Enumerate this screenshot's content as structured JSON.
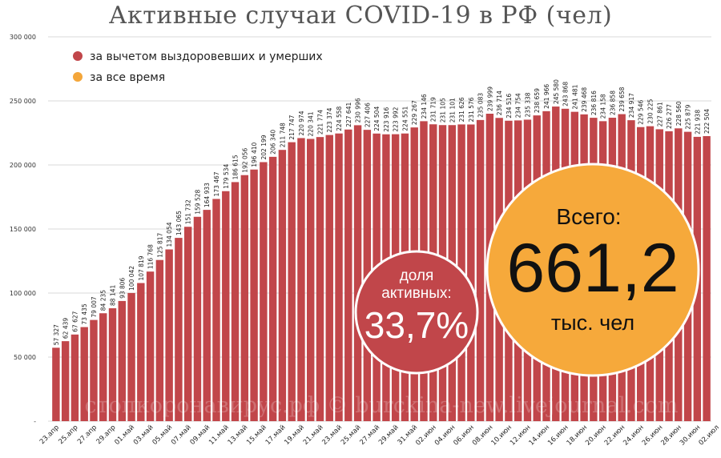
{
  "chart_data": {
    "type": "bar",
    "title": "Активные случаи COVID-19 в РФ (чел)",
    "ylim": [
      0,
      300000
    ],
    "yticks": [
      {
        "value": 0,
        "label": "-"
      },
      {
        "value": 50000,
        "label": "50 000"
      },
      {
        "value": 100000,
        "label": "100 000"
      },
      {
        "value": 150000,
        "label": "150 000"
      },
      {
        "value": 200000,
        "label": "200 000"
      },
      {
        "value": 250000,
        "label": "250 000"
      },
      {
        "value": 300000,
        "label": "300 000"
      }
    ],
    "grid": "horizontal",
    "bar_color": "#c1464a",
    "values": [
      57327,
      62439,
      67627,
      73435,
      79007,
      84235,
      88141,
      93806,
      100042,
      107819,
      116768,
      125817,
      134054,
      143065,
      151732,
      159528,
      164933,
      173467,
      179534,
      186615,
      192056,
      196410,
      202199,
      206340,
      211748,
      217747,
      220974,
      220341,
      221774,
      223374,
      224558,
      227641,
      230996,
      227406,
      224504,
      223916,
      223992,
      224551,
      229267,
      234146,
      231719,
      231105,
      231101,
      231626,
      231576,
      235083,
      239999,
      236714,
      234516,
      234754,
      235338,
      238659,
      241966,
      245580,
      243868,
      241481,
      239468,
      236816,
      234158,
      236858,
      239658,
      234917,
      229546,
      230225,
      227861,
      226277,
      228560,
      225879,
      221938,
      222504
    ],
    "value_labels": [
      "57 327",
      "62 439",
      "67 627",
      "73 435",
      "79 007",
      "84 235",
      "88 141",
      "93 806",
      "100 042",
      "107 819",
      "116 768",
      "125 817",
      "134 054",
      "143 065",
      "151 732",
      "159 528",
      "164 933",
      "173 467",
      "179 534",
      "186 615",
      "192 056",
      "196 410",
      "202 199",
      "206 340",
      "211 748",
      "217 747",
      "220 974",
      "220 341",
      "221 774",
      "223 374",
      "224 558",
      "227 641",
      "230 996",
      "227 406",
      "224 504",
      "223 916",
      "223 992",
      "224 551",
      "229 267",
      "234 146",
      "231 719",
      "231 105",
      "231 101",
      "231 626",
      "231 576",
      "235 083",
      "239 999",
      "236 714",
      "234 516",
      "234 754",
      "235 338",
      "238 659",
      "241 966",
      "245 580",
      "243 868",
      "241 481",
      "239 468",
      "236 816",
      "234 158",
      "236 858",
      "239 658",
      "234 917",
      "229 546",
      "230 225",
      "227 861",
      "226 277",
      "228 560",
      "225 879",
      "221 938",
      "222 504"
    ],
    "xtick_labels": [
      "23.апр",
      "25.апр",
      "27.апр",
      "29.апр",
      "01.май",
      "03.май",
      "05.май",
      "07.май",
      "09.май",
      "11.май",
      "13.май",
      "15.май",
      "17.май",
      "19.май",
      "21.май",
      "23.май",
      "25.май",
      "27.май",
      "29.май",
      "31.май",
      "02.июн",
      "04.июн",
      "06.июн",
      "08.июн",
      "10.июн",
      "12.июн",
      "14.июн",
      "16.июн",
      "18.июн",
      "20.июн",
      "22.июн",
      "24.июн",
      "26.июн",
      "28.июн",
      "30.июн",
      "02.июл"
    ],
    "legend": {
      "placement": "top-left",
      "entries": [
        {
          "label": "за вычетом выздоровевших и умерших",
          "color": "#c1464a"
        },
        {
          "label": "за все время",
          "color": "#f4a63a"
        }
      ]
    },
    "annotations": {
      "share": {
        "line1": "доля",
        "line2": "активных:",
        "value": "33,7%",
        "color": "#c1464a"
      },
      "total": {
        "line1": "Всего:",
        "value": "661,2",
        "line3": "тыс. чел",
        "color": "#f6a93b"
      }
    },
    "watermark": "стопкоронавирус.рф © burckina-new.livejournal.com"
  }
}
